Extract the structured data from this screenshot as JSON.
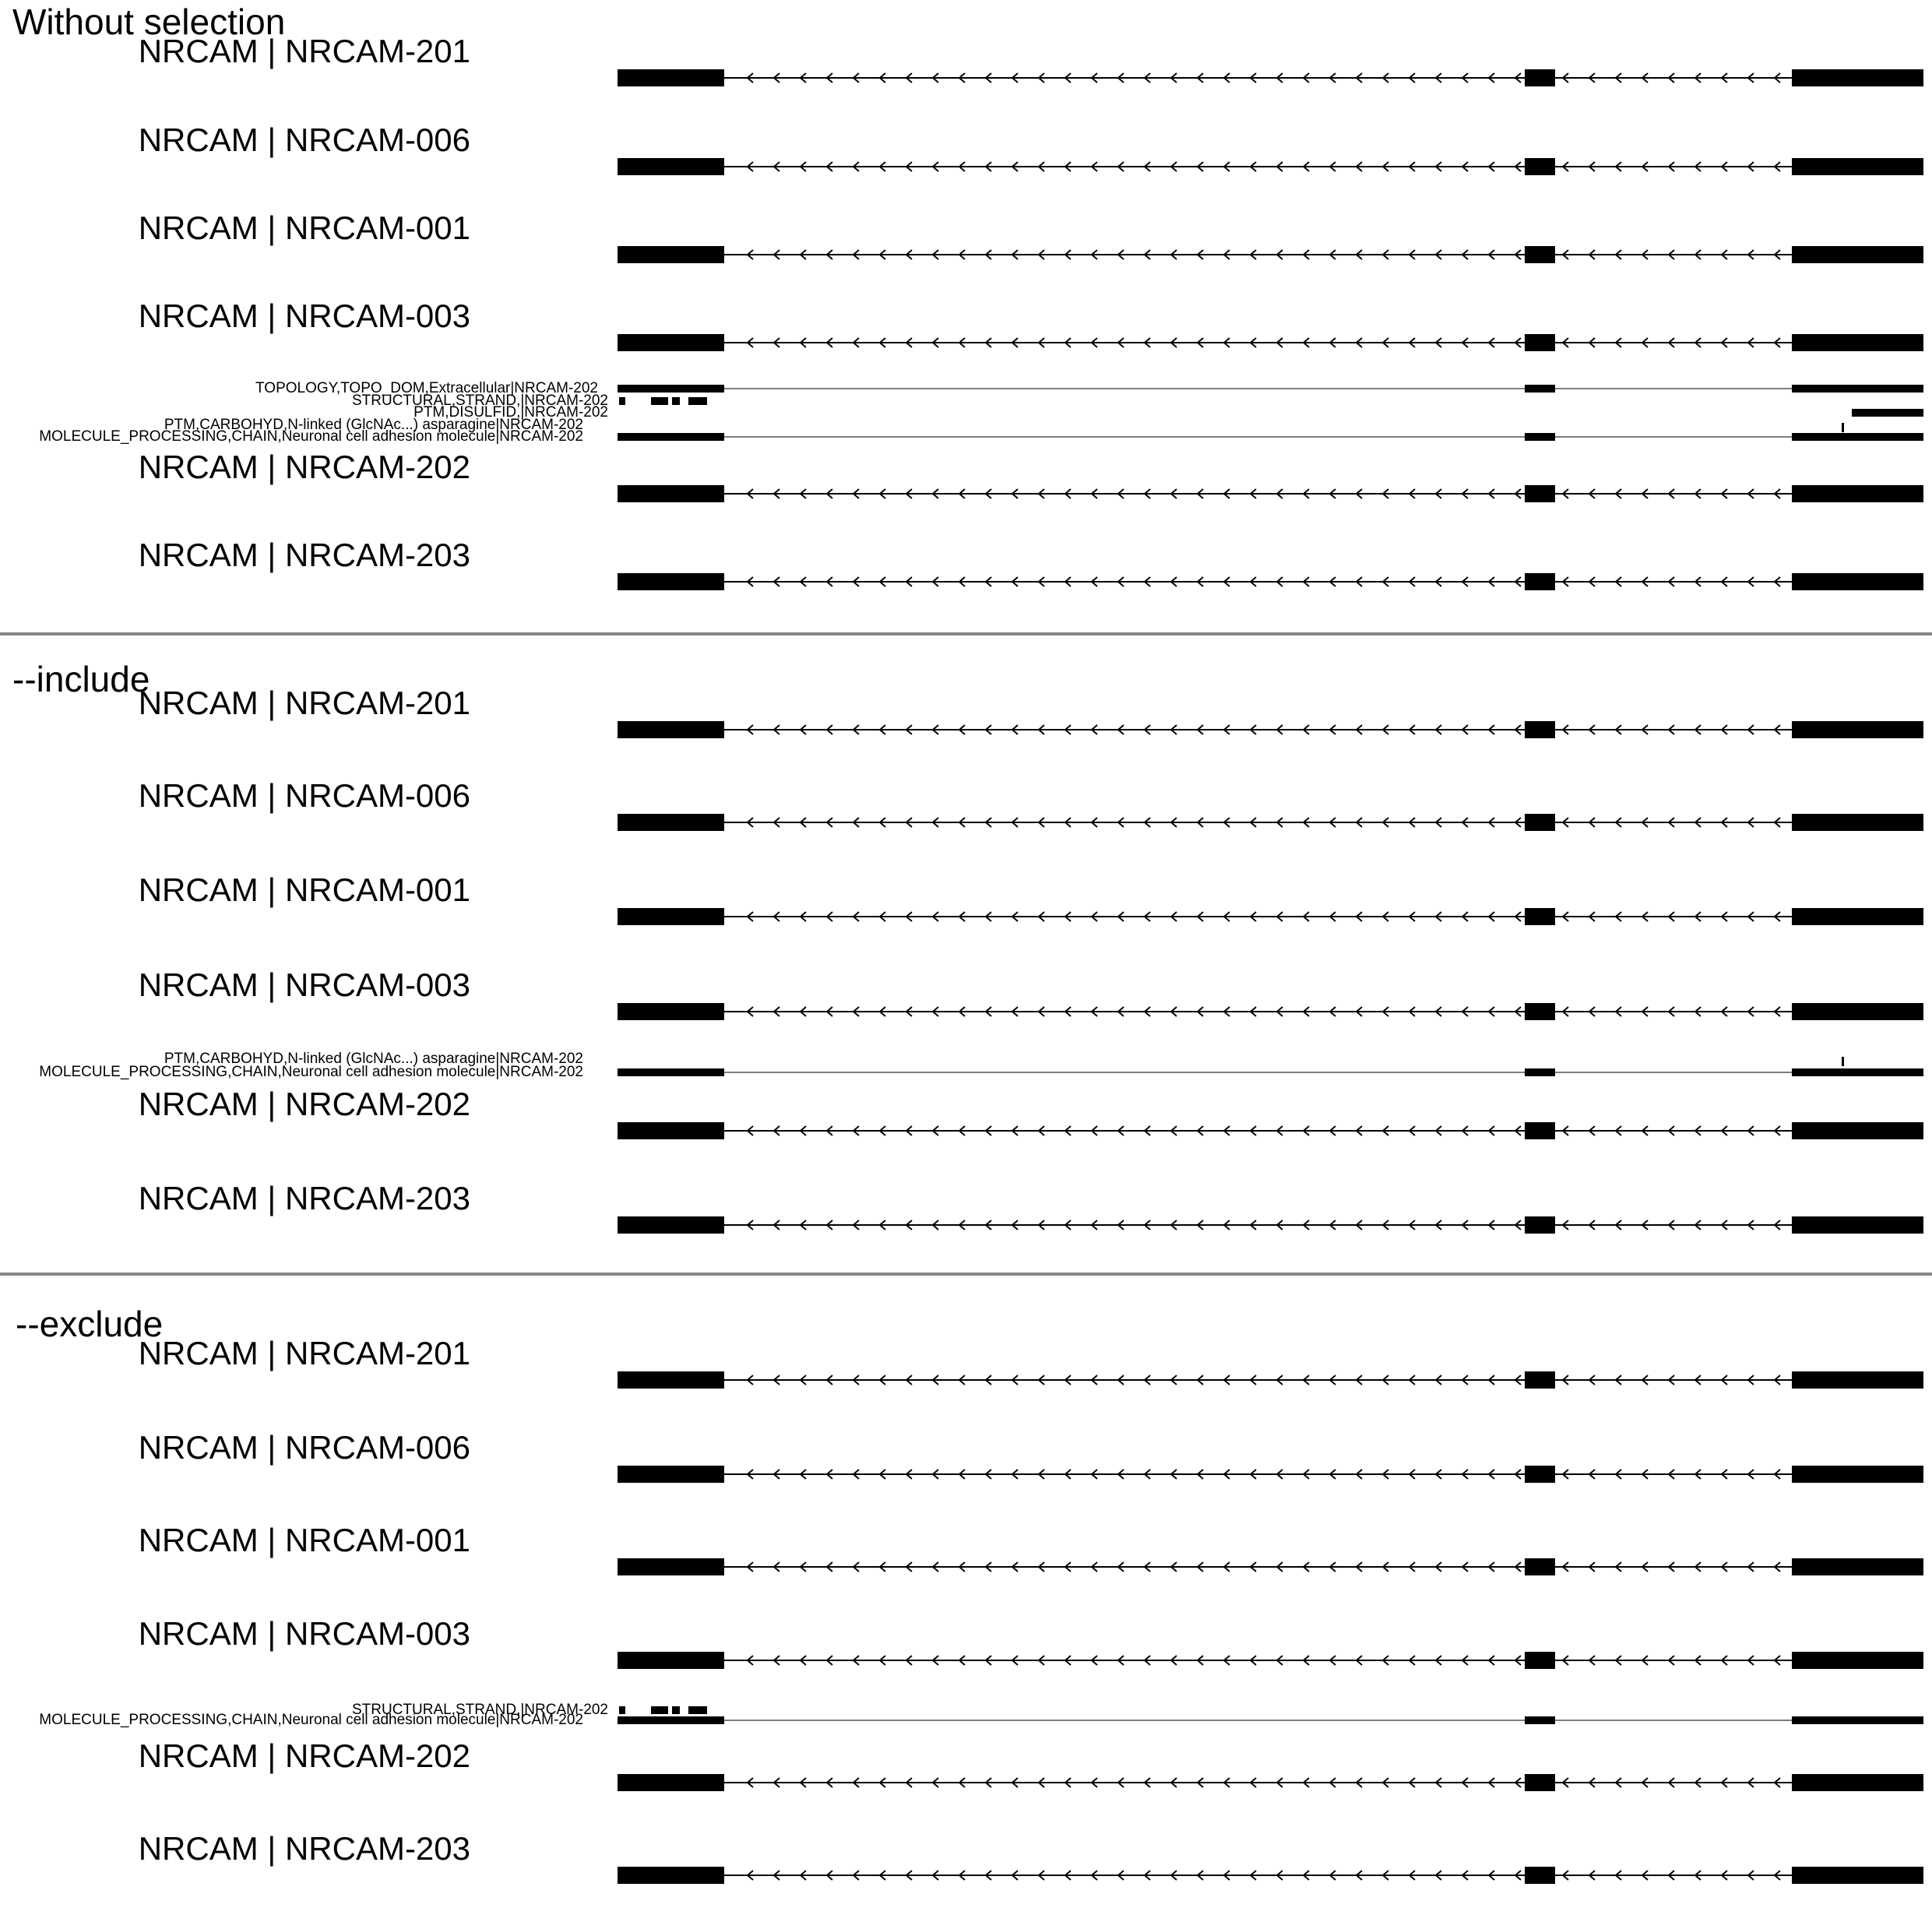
{
  "colors": {
    "ink": "#000000",
    "divider": "#888888",
    "intron": "#555555"
  },
  "panels": [
    {
      "title": "Without selection",
      "transcripts_before": [
        "NRCAM | NRCAM-201",
        "NRCAM | NRCAM-006",
        "NRCAM | NRCAM-001",
        "NRCAM | NRCAM-003"
      ],
      "features": [
        {
          "label": "TOPOLOGY,TOPO_DOM,Extracellular|NRCAM-202",
          "type": "topology"
        },
        {
          "label": "STRUCTURAL,STRAND,|NRCAM-202",
          "type": "strand"
        },
        {
          "label": "PTM,DISULFID,|NRCAM-202",
          "type": "disulfid"
        },
        {
          "label": "PTM,CARBOHYD,N-linked (GlcNAc...) asparagine|NRCAM-202",
          "type": "carbohyd"
        },
        {
          "label": "MOLECULE_PROCESSING,CHAIN,Neuronal cell adhesion molecule|NRCAM-202",
          "type": "chain"
        }
      ],
      "transcripts_after": [
        "NRCAM | NRCAM-202",
        "NRCAM | NRCAM-203"
      ]
    },
    {
      "title": "--include",
      "transcripts_before": [
        "NRCAM | NRCAM-201",
        "NRCAM | NRCAM-006",
        "NRCAM | NRCAM-001",
        "NRCAM | NRCAM-003"
      ],
      "features": [
        {
          "label": "PTM,CARBOHYD,N-linked (GlcNAc...) asparagine|NRCAM-202",
          "type": "carbohyd"
        },
        {
          "label": "MOLECULE_PROCESSING,CHAIN,Neuronal cell adhesion molecule|NRCAM-202",
          "type": "chain"
        }
      ],
      "transcripts_after": [
        "NRCAM | NRCAM-202",
        "NRCAM | NRCAM-203"
      ]
    },
    {
      "title": "--exclude",
      "transcripts_before": [
        "NRCAM | NRCAM-201",
        "NRCAM | NRCAM-006",
        "NRCAM | NRCAM-001",
        "NRCAM | NRCAM-003"
      ],
      "features": [
        {
          "label": "STRUCTURAL,STRAND,|NRCAM-202",
          "type": "strand"
        },
        {
          "label": "MOLECULE_PROCESSING,CHAIN,Neuronal cell adhesion molecule|NRCAM-202",
          "type": "chain"
        }
      ],
      "transcripts_after": [
        "NRCAM | NRCAM-202",
        "NRCAM | NRCAM-203"
      ]
    }
  ]
}
